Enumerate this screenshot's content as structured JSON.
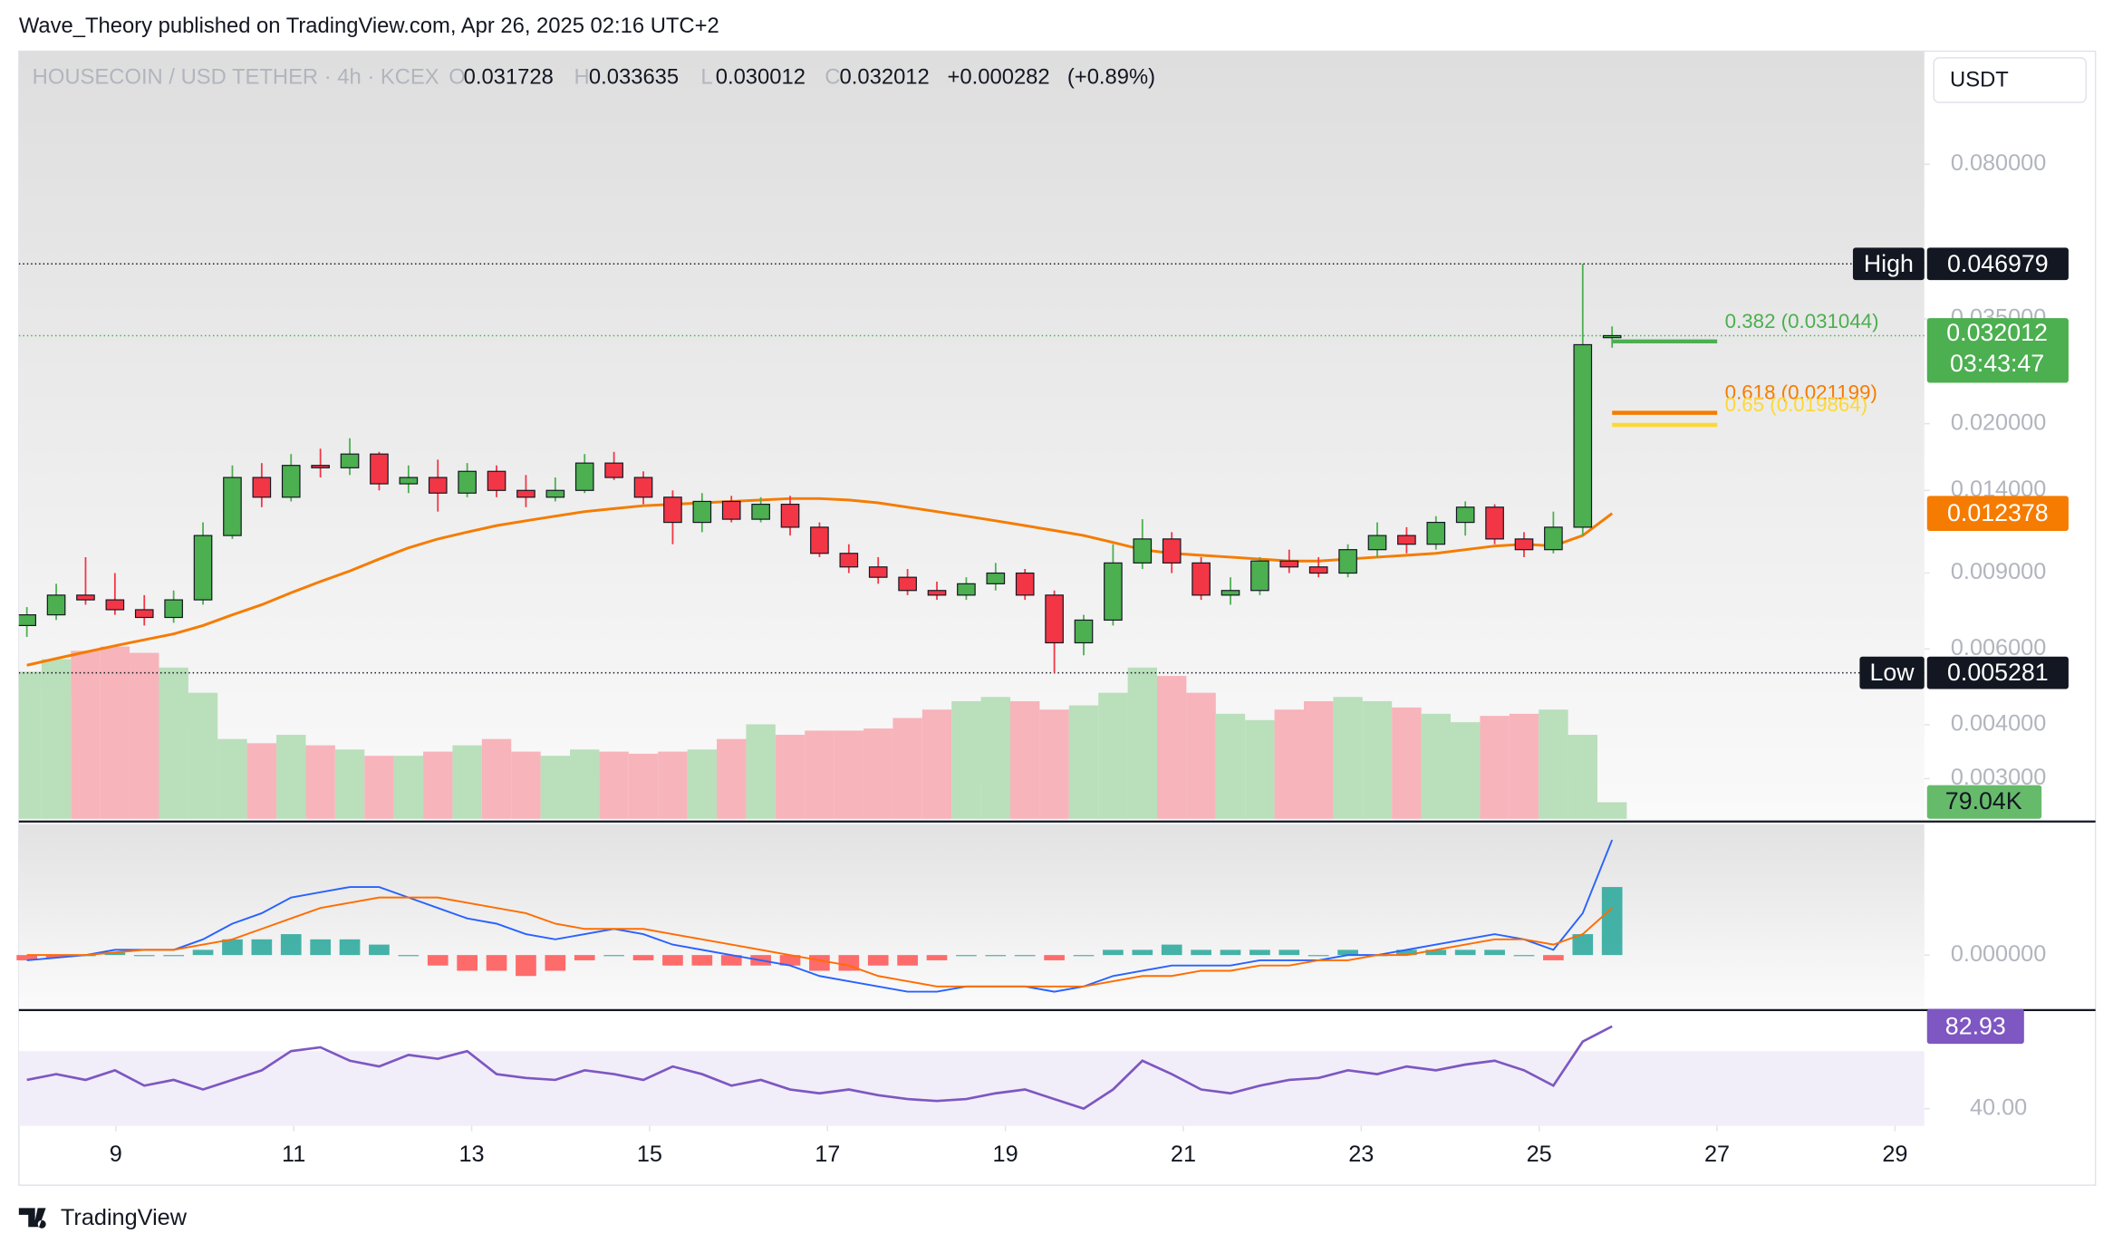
{
  "header": {
    "text": "Wave_Theory published on TradingView.com, Apr 26, 2025 02:16 UTC+2"
  },
  "footer": {
    "brand": "TradingView"
  },
  "chart_data": [
    {
      "type": "candlestick",
      "title": "HOUSECOIN / USD TETHER · 4h · KCEX",
      "currency": "USDT",
      "ohlc_labels": [
        "O",
        "H",
        "L",
        "C"
      ],
      "change": {
        "value": 0.000282,
        "label": "+0.000282"
      },
      "change_percent": {
        "value": 0.89,
        "label": "(+0.89%)"
      },
      "countdown": "03:43:47",
      "high_label": "High",
      "low_label": "Low",
      "log_scale": true,
      "up_color": "#4caf50",
      "down_color": "#f23645",
      "xlim": [
        7.91,
        29.33
      ],
      "xticks": [
        9,
        11,
        13,
        15,
        17,
        19,
        21,
        23,
        25,
        27,
        29
      ],
      "ylim": [
        0.00242,
        0.1464
      ],
      "yticks": [
        {
          "value": 0.08,
          "label": "0.080000"
        },
        {
          "value": 0.035,
          "label": "0.035000"
        },
        {
          "value": 0.02,
          "label": "0.020000"
        },
        {
          "value": 0.014,
          "label": "0.014000"
        },
        {
          "value": 0.009,
          "label": "0.009000"
        },
        {
          "value": 0.006,
          "label": "0.006000"
        },
        {
          "value": 0.004,
          "label": "0.004000"
        },
        {
          "value": 0.003,
          "label": "0.003000"
        }
      ],
      "x": [
        8,
        8.33,
        8.66,
        8.99,
        9.32,
        9.65,
        9.98,
        10.31,
        10.64,
        10.97,
        11.3,
        11.63,
        11.96,
        12.29,
        12.62,
        12.95,
        13.28,
        13.61,
        13.94,
        14.27,
        14.6,
        14.93,
        15.26,
        15.59,
        15.92,
        16.25,
        16.58,
        16.91,
        17.24,
        17.57,
        17.9,
        18.23,
        18.56,
        18.89,
        19.22,
        19.55,
        19.88,
        20.21,
        20.54,
        20.87,
        21.2,
        21.53,
        21.86,
        22.19,
        22.52,
        22.85,
        23.18,
        23.51,
        23.84,
        24.17,
        24.5,
        24.83,
        25.16,
        25.49,
        25.82
      ],
      "open": [
        0.0068,
        0.0072,
        0.008,
        0.0078,
        0.0074,
        0.0071,
        0.0078,
        0.011,
        0.015,
        0.0135,
        0.016,
        0.0158,
        0.017,
        0.0145,
        0.015,
        0.0138,
        0.0155,
        0.014,
        0.0135,
        0.014,
        0.0162,
        0.015,
        0.0135,
        0.0118,
        0.0132,
        0.012,
        0.013,
        0.0115,
        0.01,
        0.0093,
        0.0088,
        0.0082,
        0.008,
        0.0085,
        0.009,
        0.008,
        0.0062,
        0.007,
        0.0095,
        0.0108,
        0.0095,
        0.008,
        0.0082,
        0.0096,
        0.0093,
        0.009,
        0.0102,
        0.011,
        0.0105,
        0.0118,
        0.0128,
        0.0108,
        0.0102,
        0.0115,
        0.031728
      ],
      "high": [
        0.0075,
        0.0085,
        0.0098,
        0.009,
        0.008,
        0.0082,
        0.0118,
        0.016,
        0.0162,
        0.017,
        0.0175,
        0.0185,
        0.0172,
        0.016,
        0.0165,
        0.0162,
        0.016,
        0.0152,
        0.015,
        0.017,
        0.0172,
        0.0155,
        0.014,
        0.0138,
        0.0136,
        0.0135,
        0.0136,
        0.0118,
        0.0105,
        0.0098,
        0.0092,
        0.0086,
        0.0088,
        0.0095,
        0.0092,
        0.0082,
        0.0072,
        0.0105,
        0.012,
        0.0112,
        0.0098,
        0.0088,
        0.0098,
        0.0102,
        0.0098,
        0.0105,
        0.0118,
        0.0115,
        0.0122,
        0.0132,
        0.013,
        0.0112,
        0.0125,
        0.046979,
        0.033635
      ],
      "low": [
        0.0064,
        0.007,
        0.0076,
        0.0072,
        0.0068,
        0.0069,
        0.0076,
        0.0108,
        0.0128,
        0.0132,
        0.015,
        0.0152,
        0.014,
        0.0138,
        0.0125,
        0.0135,
        0.0135,
        0.0128,
        0.0132,
        0.0138,
        0.0148,
        0.013,
        0.0105,
        0.0112,
        0.0118,
        0.0118,
        0.011,
        0.0098,
        0.009,
        0.0085,
        0.008,
        0.0078,
        0.0078,
        0.0082,
        0.0078,
        0.005281,
        0.0058,
        0.0068,
        0.0092,
        0.009,
        0.0078,
        0.0076,
        0.008,
        0.009,
        0.0088,
        0.0088,
        0.0098,
        0.01,
        0.0102,
        0.011,
        0.0105,
        0.0098,
        0.01,
        0.011,
        0.030012
      ],
      "close": [
        0.0072,
        0.008,
        0.0078,
        0.0074,
        0.0071,
        0.0078,
        0.011,
        0.015,
        0.0135,
        0.016,
        0.0158,
        0.017,
        0.0145,
        0.015,
        0.0138,
        0.0155,
        0.014,
        0.0135,
        0.014,
        0.0162,
        0.015,
        0.0135,
        0.0118,
        0.0132,
        0.012,
        0.013,
        0.0115,
        0.01,
        0.0093,
        0.0088,
        0.0082,
        0.008,
        0.0085,
        0.009,
        0.008,
        0.0062,
        0.007,
        0.0095,
        0.0108,
        0.0095,
        0.008,
        0.0082,
        0.0096,
        0.0093,
        0.009,
        0.0102,
        0.011,
        0.0105,
        0.0118,
        0.0128,
        0.0108,
        0.0102,
        0.0115,
        0.0305,
        0.032012
      ],
      "ema": {
        "color": "#f57c00",
        "values": [
          0.0055,
          0.0057,
          0.0059,
          0.0061,
          0.0063,
          0.0065,
          0.0068,
          0.0072,
          0.0076,
          0.0081,
          0.0086,
          0.0091,
          0.0097,
          0.0103,
          0.0108,
          0.0112,
          0.0116,
          0.0119,
          0.0122,
          0.0125,
          0.0127,
          0.0129,
          0.013,
          0.0131,
          0.0132,
          0.0133,
          0.0134,
          0.0134,
          0.0133,
          0.0131,
          0.0128,
          0.0125,
          0.0122,
          0.0119,
          0.0116,
          0.0113,
          0.011,
          0.0106,
          0.0102,
          0.01,
          0.0099,
          0.0098,
          0.0097,
          0.0096,
          0.0096,
          0.0097,
          0.0098,
          0.0099,
          0.01,
          0.0102,
          0.0104,
          0.0105,
          0.0104,
          0.011,
          0.012378
        ]
      },
      "volume": {
        "ylim": [
          0,
          1000
        ],
        "up_color": "#b9dfbb",
        "down_color": "#f7b4bb",
        "last_value_label": "79.04K",
        "values": [
          700,
          760,
          800,
          820,
          790,
          720,
          600,
          380,
          360,
          400,
          350,
          330,
          300,
          300,
          320,
          350,
          380,
          320,
          300,
          330,
          320,
          310,
          320,
          330,
          380,
          450,
          400,
          420,
          420,
          430,
          480,
          520,
          560,
          580,
          560,
          520,
          540,
          600,
          720,
          680,
          600,
          500,
          470,
          520,
          560,
          580,
          560,
          530,
          500,
          460,
          490,
          500,
          520,
          400,
          79.04
        ]
      },
      "fib_levels": [
        {
          "label": "0.382 (0.031044)",
          "value": 0.031044,
          "color": "#4caf50"
        },
        {
          "label": "0.618 (0.021199)",
          "value": 0.021199,
          "color": "#f57c00"
        },
        {
          "label": "0.65 (0.019864)",
          "value": 0.019864,
          "color": "#fdd835"
        }
      ]
    },
    {
      "type": "macd",
      "ylim": [
        -0.001,
        0.0025
      ],
      "yticks": [
        {
          "value": 0,
          "label": "0.000000"
        }
      ],
      "series": [
        {
          "color": "#2962ff",
          "values": [
            -0.0001,
            -5e-05,
            0,
            0.0001,
            0.0001,
            0.0001,
            0.0003,
            0.0006,
            0.0008,
            0.0011,
            0.0012,
            0.0013,
            0.0013,
            0.0011,
            0.0009,
            0.0007,
            0.0006,
            0.0004,
            0.0003,
            0.0004,
            0.0005,
            0.0004,
            0.0002,
            0.0001,
            0,
            -0.0001,
            -0.0002,
            -0.0004,
            -0.0005,
            -0.0006,
            -0.0007,
            -0.0007,
            -0.0006,
            -0.0006,
            -0.0006,
            -0.0007,
            -0.0006,
            -0.0004,
            -0.0003,
            -0.0002,
            -0.0002,
            -0.0002,
            -0.0001,
            -0.0001,
            -0.0001,
            0,
            0,
            0.0001,
            0.0002,
            0.0003,
            0.0004,
            0.0003,
            0.0001,
            0.0008,
            0.0022
          ]
        },
        {
          "color": "#ff6d00",
          "values": [
            0,
            0,
            0,
            5e-05,
            0.0001,
            0.0001,
            0.0002,
            0.0003,
            0.0005,
            0.0007,
            0.0009,
            0.001,
            0.0011,
            0.0011,
            0.0011,
            0.001,
            0.0009,
            0.0008,
            0.0006,
            0.0005,
            0.0005,
            0.0005,
            0.0004,
            0.0003,
            0.0002,
            0.0001,
            0,
            -0.0001,
            -0.0002,
            -0.0004,
            -0.0005,
            -0.0006,
            -0.0006,
            -0.0006,
            -0.0006,
            -0.0006,
            -0.0006,
            -0.0005,
            -0.0004,
            -0.0004,
            -0.0003,
            -0.0003,
            -0.0002,
            -0.0002,
            -0.0001,
            -0.0001,
            0,
            0,
            0.0001,
            0.0002,
            0.0003,
            0.0003,
            0.0002,
            0.0004,
            0.0009
          ]
        }
      ],
      "histogram": {
        "up_color": "#26a69a",
        "down_color": "#ff5252",
        "values": [
          -0.0001,
          -5e-05,
          0,
          5e-05,
          0,
          0,
          0.0001,
          0.0003,
          0.0003,
          0.0004,
          0.0003,
          0.0003,
          0.0002,
          0,
          -0.0002,
          -0.0003,
          -0.0003,
          -0.0004,
          -0.0003,
          -0.0001,
          0,
          -0.0001,
          -0.0002,
          -0.0002,
          -0.0002,
          -0.0002,
          -0.0002,
          -0.0003,
          -0.0003,
          -0.0002,
          -0.0002,
          -0.0001,
          0,
          0,
          0,
          -0.0001,
          0,
          0.0001,
          0.0001,
          0.0002,
          0.0001,
          0.0001,
          0.0001,
          0.0001,
          0,
          0.0001,
          0,
          0.0001,
          0.0001,
          0.0001,
          0.0001,
          0,
          -0.0001,
          0.0004,
          0.0013
        ]
      }
    },
    {
      "type": "line",
      "ylim": [
        31,
        90
      ],
      "yticks": [
        {
          "value": 40,
          "label": "40.00"
        }
      ],
      "band": [
        30,
        70
      ],
      "series": [
        {
          "color": "#7e57c2",
          "values": [
            55,
            58,
            55,
            60,
            52,
            55,
            50,
            55,
            60,
            70,
            72,
            65,
            62,
            68,
            66,
            70,
            58,
            56,
            55,
            60,
            58,
            55,
            62,
            58,
            52,
            55,
            50,
            48,
            50,
            47,
            45,
            44,
            45,
            48,
            50,
            45,
            40,
            50,
            65,
            58,
            50,
            48,
            52,
            55,
            56,
            60,
            58,
            62,
            60,
            63,
            65,
            60,
            52,
            75,
            82.93
          ]
        }
      ]
    }
  ]
}
